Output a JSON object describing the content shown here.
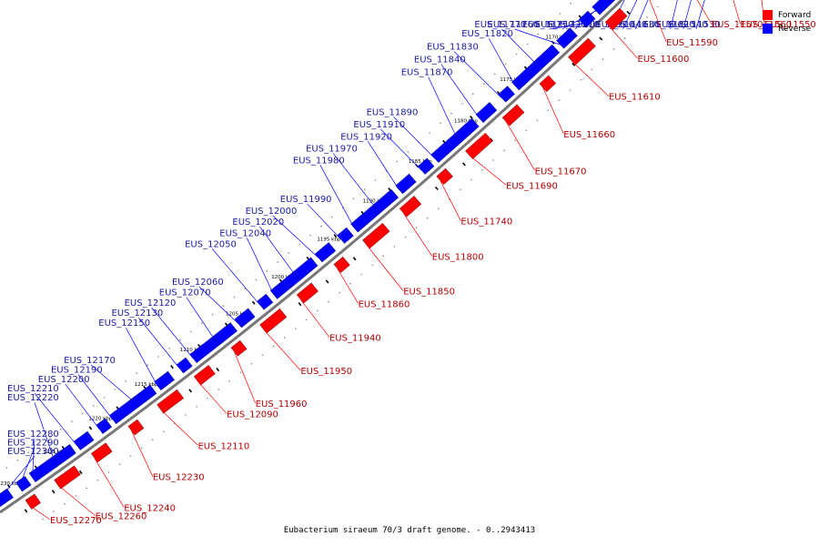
{
  "caption": "Eubacterium siraeum 70/3 draft genome. - 0..2943413",
  "legend": [
    {
      "label": "Forward",
      "color": "#ff0000"
    },
    {
      "label": "Reverse",
      "color": "#0000ff"
    }
  ],
  "colors": {
    "forward": "#ff0000",
    "reverse": "#0000ff",
    "backbone": "#777777"
  },
  "ticks": [
    "1155 kbp",
    "1160 kbp",
    "1165 kbp",
    "1170 kbp",
    "1175 kbp",
    "1180 kbp",
    "1185 kbp",
    "1190 kbp",
    "1195 kbp",
    "1200 kbp",
    "1205 kbp",
    "1210 kbp",
    "1215 kbp",
    "1220 kbp",
    "1225 kbp",
    "1230 kbp"
  ],
  "reverse_genes": [
    "EUS_11530",
    "EUS_11540",
    "EUS_11620",
    "EUS_11630",
    "EUS_11640",
    "EUS_11700",
    "EUS_11710",
    "EUS_11720",
    "EUS_11750",
    "EUS_11760",
    "EUS_11770",
    "EUS_11820",
    "EUS_11830",
    "EUS_11840",
    "EUS_11870",
    "EUS_11890",
    "EUS_11910",
    "EUS_11920",
    "EUS_11970",
    "EUS_11980",
    "EUS_11990",
    "EUS_12000",
    "EUS_12020",
    "EUS_12040",
    "EUS_12050",
    "EUS_12060",
    "EUS_12070",
    "EUS_12120",
    "EUS_12130",
    "EUS_12150",
    "EUS_12170",
    "EUS_12190",
    "EUS_12200",
    "EUS_12210",
    "EUS_12220",
    "EUS_12280",
    "EUS_12290",
    "EUS_12300"
  ],
  "forward_genes": [
    "EUS_11550",
    "EUS_11560",
    "EUS_11570",
    "EUS_11590",
    "EUS_11600",
    "EUS_11610",
    "EUS_11660",
    "EUS_11670",
    "EUS_11690",
    "EUS_11740",
    "EUS_11800",
    "EUS_11850",
    "EUS_11860",
    "EUS_11940",
    "EUS_11950",
    "EUS_11960",
    "EUS_12090",
    "EUS_12110",
    "EUS_12230",
    "EUS_12240",
    "EUS_12260",
    "EUS_12270"
  ]
}
